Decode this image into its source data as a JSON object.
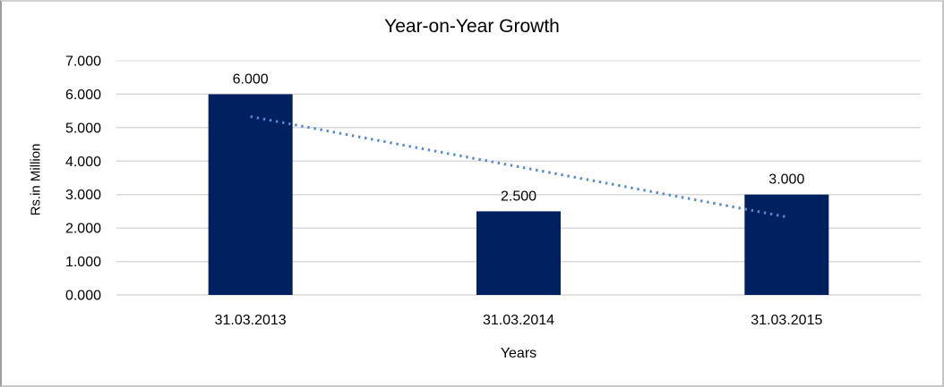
{
  "chart_data": {
    "type": "bar",
    "title": "Year-on-Year Growth",
    "xlabel": "Years",
    "ylabel": "Rs.in Million",
    "categories": [
      "31.03.2013",
      "31.03.2014",
      "31.03.2015"
    ],
    "values": [
      6.0,
      2.5,
      3.0
    ],
    "value_labels": [
      "6.000",
      "2.500",
      "3.000"
    ],
    "y_ticks": [
      "0.000",
      "1.000",
      "2.000",
      "3.000",
      "4.000",
      "5.000",
      "6.000",
      "7.000"
    ],
    "ylim": [
      0,
      7
    ],
    "grid": true,
    "legend": false,
    "bar_color": "#002060",
    "gridline_color": "#d9d9d9",
    "baseline_color": "#c6c6c6",
    "trendline": {
      "type": "linear",
      "style": "dotted",
      "color": "#5389ce",
      "start_value": 5.333,
      "end_value": 2.333
    }
  }
}
